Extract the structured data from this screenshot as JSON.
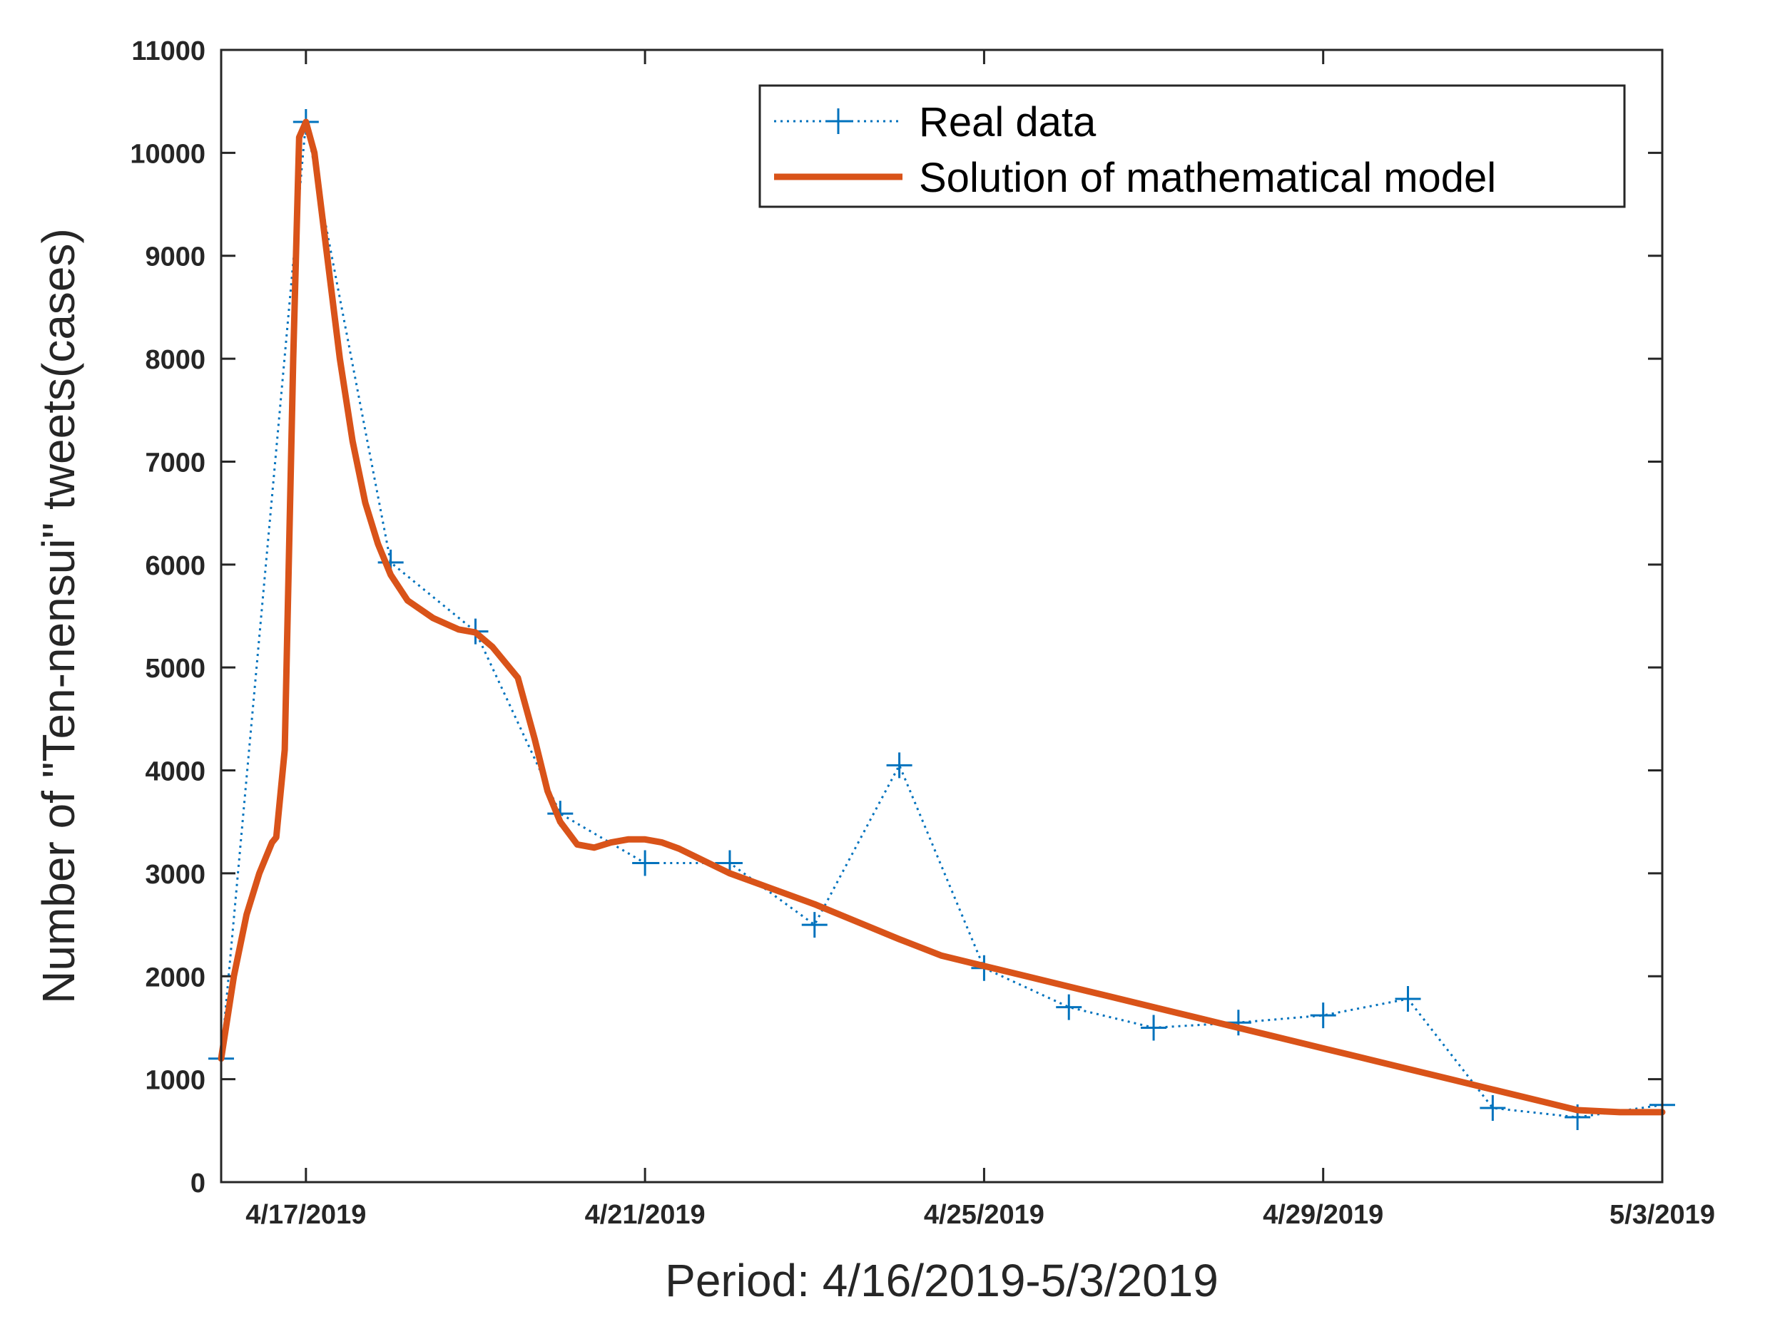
{
  "chart_data": {
    "type": "line",
    "title": "",
    "xlabel": "Period: 4/16/2019-5/3/2019",
    "ylabel": "Number of \"Ten-nensui\" tweets(cases)",
    "xlim": [
      0,
      17
    ],
    "ylim": [
      0,
      11000
    ],
    "yticks": [
      0,
      1000,
      2000,
      3000,
      4000,
      5000,
      6000,
      7000,
      8000,
      9000,
      10000,
      11000
    ],
    "xticks": [
      {
        "x": 1,
        "label": "4/17/2019"
      },
      {
        "x": 5,
        "label": "4/21/2019"
      },
      {
        "x": 9,
        "label": "4/25/2019"
      },
      {
        "x": 13,
        "label": "4/29/2019"
      },
      {
        "x": 17,
        "label": "5/3/2019"
      }
    ],
    "legend_position": "top-right",
    "series": [
      {
        "name": "Real data",
        "style": "dotted-plus",
        "color": "#0072BD",
        "x": [
          0,
          1,
          2,
          3,
          4,
          5,
          6,
          7,
          8,
          9,
          10,
          11,
          12,
          13,
          14,
          15,
          16,
          17
        ],
        "values": [
          1200,
          10300,
          6020,
          5350,
          3580,
          3100,
          3100,
          2500,
          4050,
          2080,
          1700,
          1500,
          1550,
          1620,
          1780,
          720,
          630,
          750
        ]
      },
      {
        "name": "Solution of mathematical model",
        "style": "solid",
        "color": "#D95319",
        "x": [
          0,
          0.15,
          0.3,
          0.45,
          0.6,
          0.65,
          0.75,
          0.85,
          0.92,
          1.0,
          1.1,
          1.25,
          1.4,
          1.55,
          1.7,
          1.85,
          2.0,
          2.2,
          2.5,
          2.8,
          3.0,
          3.2,
          3.5,
          3.7,
          3.85,
          4.0,
          4.2,
          4.4,
          4.6,
          4.8,
          5.0,
          5.2,
          5.4,
          5.6,
          5.8,
          6.0,
          6.5,
          7.0,
          7.5,
          8.0,
          8.5,
          9.0,
          9.5,
          10.0,
          10.5,
          11.0,
          11.5,
          12.0,
          12.5,
          13.0,
          13.5,
          14.0,
          14.5,
          15.0,
          15.5,
          16.0,
          16.5,
          17.0
        ],
        "values": [
          1200,
          2000,
          2600,
          3000,
          3300,
          3350,
          4200,
          8000,
          10150,
          10300,
          10000,
          9000,
          8000,
          7200,
          6600,
          6200,
          5900,
          5650,
          5480,
          5370,
          5340,
          5200,
          4900,
          4300,
          3800,
          3500,
          3280,
          3250,
          3300,
          3330,
          3330,
          3300,
          3240,
          3160,
          3080,
          3000,
          2850,
          2700,
          2530,
          2360,
          2200,
          2100,
          2000,
          1900,
          1800,
          1700,
          1600,
          1500,
          1400,
          1300,
          1200,
          1100,
          1000,
          900,
          800,
          700,
          680,
          680
        ]
      }
    ]
  }
}
